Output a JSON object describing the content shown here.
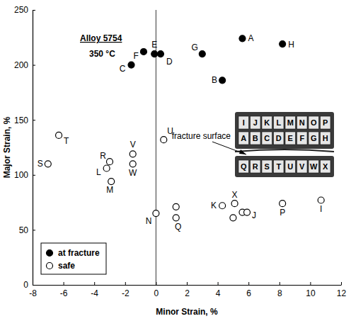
{
  "chart_data": {
    "type": "scatter",
    "title": "Alloy 5754",
    "subtitle": "350 °C",
    "x_label": "Minor Strain, %",
    "y_label": "Major Strain, %",
    "xlim": [
      -8,
      12
    ],
    "ylim": [
      0,
      250
    ],
    "xticks": [
      -8,
      -6,
      -4,
      -2,
      0,
      2,
      4,
      6,
      8,
      10,
      12
    ],
    "yticks": [
      0,
      50,
      100,
      150,
      200,
      250
    ],
    "grid": false,
    "legend": "lower left",
    "reference_line_x": 0,
    "annotations": [
      {
        "text": "fracture surface"
      }
    ],
    "inset_rows": [
      [
        "I",
        "J",
        "K",
        "L",
        "M",
        "N",
        "O",
        "P"
      ],
      [
        "A",
        "B",
        "C",
        "D",
        "E",
        "F",
        "G",
        "H"
      ],
      [
        "Q",
        "R",
        "S",
        "T",
        "U",
        "V",
        "W",
        "X"
      ]
    ],
    "series": [
      {
        "name": "at fracture",
        "marker": "filled",
        "color": "#000000",
        "x": [
          5.6,
          8.2,
          -0.1,
          0.3,
          -0.8,
          -1.6,
          3.0,
          4.3
        ],
        "values": [
          224,
          219,
          210,
          210,
          212,
          200,
          210,
          186
        ],
        "labels": [
          "A",
          "H",
          "E",
          "D",
          "F",
          "C",
          "G",
          "B"
        ]
      },
      {
        "name": "safe",
        "marker": "open",
        "color": "#000000",
        "x": [
          -6.3,
          -7.0,
          -3.0,
          -3.2,
          -2.9,
          -1.5,
          -1.5,
          0.5,
          0.0,
          1.3,
          1.3,
          4.3,
          5.1,
          5.0,
          5.6,
          5.9,
          8.2,
          10.7
        ],
        "values": [
          136,
          110,
          112,
          106,
          94,
          119,
          110,
          132,
          65,
          71,
          61,
          72,
          74,
          61,
          66,
          66,
          74,
          77
        ],
        "labels": [
          "T",
          "S",
          "R",
          "L",
          "M",
          "V",
          "W",
          "U",
          "N",
          null,
          "Q",
          "K",
          "X",
          null,
          null,
          "J",
          "P",
          "I"
        ]
      }
    ]
  }
}
